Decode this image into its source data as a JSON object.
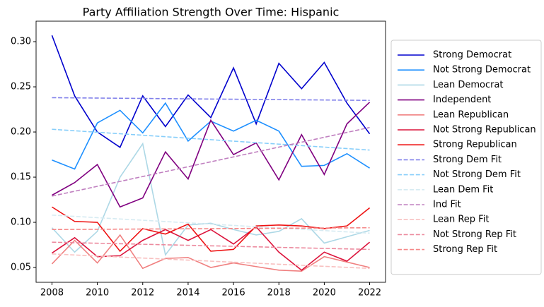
{
  "chart_data": {
    "type": "line",
    "title": "Party Affiliation Strength Over Time: Hispanic",
    "x": [
      2008,
      2009,
      2010,
      2011,
      2012,
      2013,
      2014,
      2015,
      2016,
      2017,
      2018,
      2019,
      2020,
      2021,
      2022
    ],
    "series": [
      {
        "name": "Strong Democrat",
        "color": "#0000cd",
        "linestyle": "solid",
        "values": [
          0.307,
          0.24,
          0.2,
          0.183,
          0.24,
          0.206,
          0.241,
          0.216,
          0.271,
          0.209,
          0.276,
          0.248,
          0.277,
          0.232,
          0.198
        ]
      },
      {
        "name": "Not Strong Democrat",
        "color": "#1e90ff",
        "linestyle": "solid",
        "values": [
          0.169,
          0.159,
          0.21,
          0.224,
          0.199,
          0.232,
          0.19,
          0.212,
          0.201,
          0.213,
          0.201,
          0.162,
          0.163,
          0.176,
          0.16
        ]
      },
      {
        "name": "Lean Democrat",
        "color": "#add8e6",
        "linestyle": "solid",
        "values": [
          0.094,
          0.067,
          0.09,
          0.15,
          0.187,
          0.064,
          0.097,
          0.099,
          0.092,
          0.086,
          0.09,
          0.104,
          0.077,
          0.084,
          0.091
        ]
      },
      {
        "name": "Independent",
        "color": "#800080",
        "linestyle": "solid",
        "values": [
          0.13,
          0.144,
          0.164,
          0.117,
          0.127,
          0.178,
          0.148,
          0.213,
          0.175,
          0.188,
          0.147,
          0.197,
          0.153,
          0.209,
          0.233
        ]
      },
      {
        "name": "Lean Republican",
        "color": "#f08080",
        "linestyle": "solid",
        "values": [
          0.054,
          0.08,
          0.055,
          0.086,
          0.049,
          0.06,
          0.061,
          0.05,
          0.055,
          0.051,
          0.047,
          0.046,
          0.062,
          0.056,
          0.05
        ]
      },
      {
        "name": "Not Strong Republican",
        "color": "#dc143c",
        "linestyle": "solid",
        "values": [
          0.066,
          0.083,
          0.062,
          0.063,
          0.08,
          0.092,
          0.08,
          0.092,
          0.076,
          0.095,
          0.067,
          0.047,
          0.067,
          0.057,
          0.078
        ]
      },
      {
        "name": "Strong Republican",
        "color": "#ee1111",
        "linestyle": "solid",
        "values": [
          0.117,
          0.101,
          0.1,
          0.068,
          0.093,
          0.087,
          0.098,
          0.068,
          0.07,
          0.096,
          0.097,
          0.096,
          0.093,
          0.096,
          0.116
        ]
      },
      {
        "name": "Strong Dem Fit",
        "color": "#8080ea",
        "linestyle": "dashed",
        "x": [
          2008,
          2022
        ],
        "values": [
          0.238,
          0.235
        ]
      },
      {
        "name": "Not Strong Dem Fit",
        "color": "#87cefa",
        "linestyle": "dashed",
        "x": [
          2008,
          2022
        ],
        "values": [
          0.203,
          0.18
        ]
      },
      {
        "name": "Lean Dem Fit",
        "color": "#d6ebf2",
        "linestyle": "dashed",
        "x": [
          2008,
          2022
        ],
        "values": [
          0.108,
          0.088
        ]
      },
      {
        "name": "Ind Fit",
        "color": "#c080c0",
        "linestyle": "dashed",
        "x": [
          2008,
          2022
        ],
        "values": [
          0.129,
          0.205
        ]
      },
      {
        "name": "Lean Rep Fit",
        "color": "#f8c0c0",
        "linestyle": "dashed",
        "x": [
          2008,
          2022
        ],
        "values": [
          0.065,
          0.049
        ]
      },
      {
        "name": "Not Strong Rep Fit",
        "color": "#ec8a9e",
        "linestyle": "dashed",
        "x": [
          2008,
          2022
        ],
        "values": [
          0.078,
          0.07
        ]
      },
      {
        "name": "Strong Rep Fit",
        "color": "#f58888",
        "linestyle": "dashed",
        "x": [
          2008,
          2022
        ],
        "values": [
          0.092,
          0.094
        ]
      }
    ],
    "xlim": [
      2007.3,
      2022.7
    ],
    "xticks": [
      2008,
      2010,
      2012,
      2014,
      2016,
      2018,
      2020,
      2022
    ],
    "ylim": [
      0.0336,
      0.3227
    ],
    "yticks": [
      0.05,
      {
        "value": 0.1,
        "label": "0.10"
      },
      0.15,
      {
        "value": 0.2,
        "label": "0.20"
      },
      0.25,
      {
        "value": 0.3,
        "label": "0.30"
      }
    ],
    "grid": false,
    "legend": "outside right"
  }
}
